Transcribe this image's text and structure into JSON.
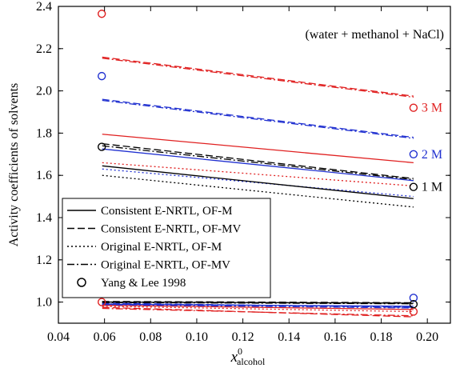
{
  "chart_data": {
    "type": "line",
    "annotation": "(water + methanol + NaCl)",
    "ylabel": "Activity coefficients of solvents",
    "xlabel_main": "x",
    "xlabel_sup": "0",
    "xlabel_sub": "alcohol",
    "xlim": [
      0.04,
      0.21
    ],
    "ylim": [
      0.9,
      2.4
    ],
    "xticks": [
      "0.04",
      "0.06",
      "0.08",
      "0.10",
      "0.12",
      "0.14",
      "0.16",
      "0.18",
      "0.20"
    ],
    "yticks": [
      "1.0",
      "1.2",
      "1.4",
      "1.6",
      "1.8",
      "2.0",
      "2.2",
      "2.4"
    ],
    "concentration_labels": [
      {
        "text": "3 M",
        "color": "#e02020",
        "y": 1.92
      },
      {
        "text": "2 M",
        "color": "#2030d0",
        "y": 1.7
      },
      {
        "text": "1 M",
        "color": "#000000",
        "y": 1.545
      }
    ],
    "legend": {
      "position": "lower-left",
      "entries": [
        {
          "label": "Consistent E-NRTL, OF-M",
          "style": "solid"
        },
        {
          "label": "Consistent E-NRTL, OF-MV",
          "style": "dashed"
        },
        {
          "label": "Original E-NRTL, OF-M",
          "style": "dotted"
        },
        {
          "label": "Original E-NRTL, OF-MV",
          "style": "dashdot"
        },
        {
          "label": "Yang & Lee 1998",
          "style": "marker"
        }
      ]
    },
    "series": [
      {
        "model": "Consistent E-NRTL, OF-M",
        "conc": "3 M",
        "color": "#e02020",
        "style": "solid",
        "x": [
          0.059,
          0.194
        ],
        "y": [
          1.795,
          1.66
        ]
      },
      {
        "model": "Consistent E-NRTL, OF-MV",
        "conc": "3 M",
        "color": "#e02020",
        "style": "dashed",
        "x": [
          0.059,
          0.194
        ],
        "y": [
          2.16,
          1.975
        ]
      },
      {
        "model": "Original E-NRTL, OF-M",
        "conc": "3 M",
        "color": "#e02020",
        "style": "dotted",
        "x": [
          0.059,
          0.194
        ],
        "y": [
          1.66,
          1.55
        ]
      },
      {
        "model": "Original E-NRTL, OF-MV",
        "conc": "3 M",
        "color": "#e02020",
        "style": "dashdot",
        "x": [
          0.059,
          0.194
        ],
        "y": [
          2.155,
          1.97
        ]
      },
      {
        "model": "Consistent E-NRTL, OF-M",
        "conc": "2 M",
        "color": "#2030d0",
        "style": "solid",
        "x": [
          0.059,
          0.194
        ],
        "y": [
          1.725,
          1.575
        ]
      },
      {
        "model": "Consistent E-NRTL, OF-MV",
        "conc": "2 M",
        "color": "#2030d0",
        "style": "dashed",
        "x": [
          0.059,
          0.194
        ],
        "y": [
          1.96,
          1.78
        ]
      },
      {
        "model": "Original E-NRTL, OF-M",
        "conc": "2 M",
        "color": "#2030d0",
        "style": "dotted",
        "x": [
          0.059,
          0.194
        ],
        "y": [
          1.63,
          1.5
        ]
      },
      {
        "model": "Original E-NRTL, OF-MV",
        "conc": "2 M",
        "color": "#2030d0",
        "style": "dashdot",
        "x": [
          0.059,
          0.194
        ],
        "y": [
          1.955,
          1.775
        ]
      },
      {
        "model": "Consistent E-NRTL, OF-M",
        "conc": "1 M",
        "color": "#000000",
        "style": "solid",
        "x": [
          0.059,
          0.194
        ],
        "y": [
          1.645,
          1.49
        ]
      },
      {
        "model": "Consistent E-NRTL, OF-MV",
        "conc": "1 M",
        "color": "#000000",
        "style": "dashed",
        "x": [
          0.059,
          0.194
        ],
        "y": [
          1.75,
          1.585
        ]
      },
      {
        "model": "Original E-NRTL, OF-M",
        "conc": "1 M",
        "color": "#000000",
        "style": "dotted",
        "x": [
          0.059,
          0.194
        ],
        "y": [
          1.6,
          1.45
        ]
      },
      {
        "model": "Original E-NRTL, OF-MV",
        "conc": "1 M",
        "color": "#000000",
        "style": "dashdot",
        "x": [
          0.059,
          0.194
        ],
        "y": [
          1.74,
          1.58
        ]
      },
      {
        "model": "Consistent E-NRTL, OF-M",
        "conc": "3 M",
        "color": "#e02020",
        "style": "solid",
        "x": [
          0.059,
          0.194
        ],
        "y": [
          0.985,
          0.965
        ]
      },
      {
        "model": "Consistent E-NRTL, OF-MV",
        "conc": "3 M",
        "color": "#e02020",
        "style": "dashed",
        "x": [
          0.059,
          0.194
        ],
        "y": [
          0.975,
          0.93
        ]
      },
      {
        "model": "Original E-NRTL, OF-M",
        "conc": "3 M",
        "color": "#e02020",
        "style": "dotted",
        "x": [
          0.059,
          0.194
        ],
        "y": [
          0.98,
          0.955
        ]
      },
      {
        "model": "Original E-NRTL, OF-MV",
        "conc": "3 M",
        "color": "#e02020",
        "style": "dashdot",
        "x": [
          0.059,
          0.194
        ],
        "y": [
          0.97,
          0.935
        ]
      },
      {
        "model": "Consistent E-NRTL, OF-M",
        "conc": "2 M",
        "color": "#2030d0",
        "style": "solid",
        "x": [
          0.059,
          0.194
        ],
        "y": [
          0.99,
          0.98
        ]
      },
      {
        "model": "Consistent E-NRTL, OF-MV",
        "conc": "2 M",
        "color": "#2030d0",
        "style": "dashed",
        "x": [
          0.059,
          0.194
        ],
        "y": [
          0.995,
          0.975
        ]
      },
      {
        "model": "Original E-NRTL, OF-M",
        "conc": "2 M",
        "color": "#2030d0",
        "style": "dotted",
        "x": [
          0.059,
          0.194
        ],
        "y": [
          0.992,
          0.978
        ]
      },
      {
        "model": "Original E-NRTL, OF-MV",
        "conc": "2 M",
        "color": "#2030d0",
        "style": "dashdot",
        "x": [
          0.059,
          0.194
        ],
        "y": [
          0.988,
          0.972
        ]
      },
      {
        "model": "Consistent E-NRTL, OF-M",
        "conc": "1 M",
        "color": "#000000",
        "style": "solid",
        "x": [
          0.059,
          0.194
        ],
        "y": [
          1.0,
          0.995
        ]
      },
      {
        "model": "Consistent E-NRTL, OF-MV",
        "conc": "1 M",
        "color": "#000000",
        "style": "dashed",
        "x": [
          0.059,
          0.194
        ],
        "y": [
          1.003,
          0.997
        ]
      },
      {
        "model": "Original E-NRTL, OF-M",
        "conc": "1 M",
        "color": "#000000",
        "style": "dotted",
        "x": [
          0.059,
          0.194
        ],
        "y": [
          1.001,
          0.994
        ]
      },
      {
        "model": "Original E-NRTL, OF-MV",
        "conc": "1 M",
        "color": "#000000",
        "style": "dashdot",
        "x": [
          0.059,
          0.194
        ],
        "y": [
          0.998,
          0.992
        ]
      }
    ],
    "points": [
      {
        "source": "Yang & Lee 1998",
        "conc": "3 M",
        "color": "#e02020",
        "x": 0.0588,
        "y": 2.365
      },
      {
        "source": "Yang & Lee 1998",
        "conc": "3 M",
        "color": "#e02020",
        "x": 0.194,
        "y": 1.92
      },
      {
        "source": "Yang & Lee 1998",
        "conc": "2 M",
        "color": "#2030d0",
        "x": 0.0588,
        "y": 2.07
      },
      {
        "source": "Yang & Lee 1998",
        "conc": "2 M",
        "color": "#2030d0",
        "x": 0.194,
        "y": 1.7
      },
      {
        "source": "Yang & Lee 1998",
        "conc": "1 M",
        "color": "#000000",
        "x": 0.0588,
        "y": 1.735
      },
      {
        "source": "Yang & Lee 1998",
        "conc": "1 M",
        "color": "#000000",
        "x": 0.194,
        "y": 1.545
      },
      {
        "source": "Yang & Lee 1998",
        "conc": "3 M",
        "color": "#e02020",
        "x": 0.0588,
        "y": 1.0
      },
      {
        "source": "Yang & Lee 1998",
        "conc": "3 M",
        "color": "#e02020",
        "x": 0.194,
        "y": 0.955
      },
      {
        "source": "Yang & Lee 1998",
        "conc": "2 M",
        "color": "#2030d0",
        "x": 0.194,
        "y": 1.02
      },
      {
        "source": "Yang & Lee 1998",
        "conc": "1 M",
        "color": "#000000",
        "x": 0.194,
        "y": 0.99
      }
    ]
  }
}
